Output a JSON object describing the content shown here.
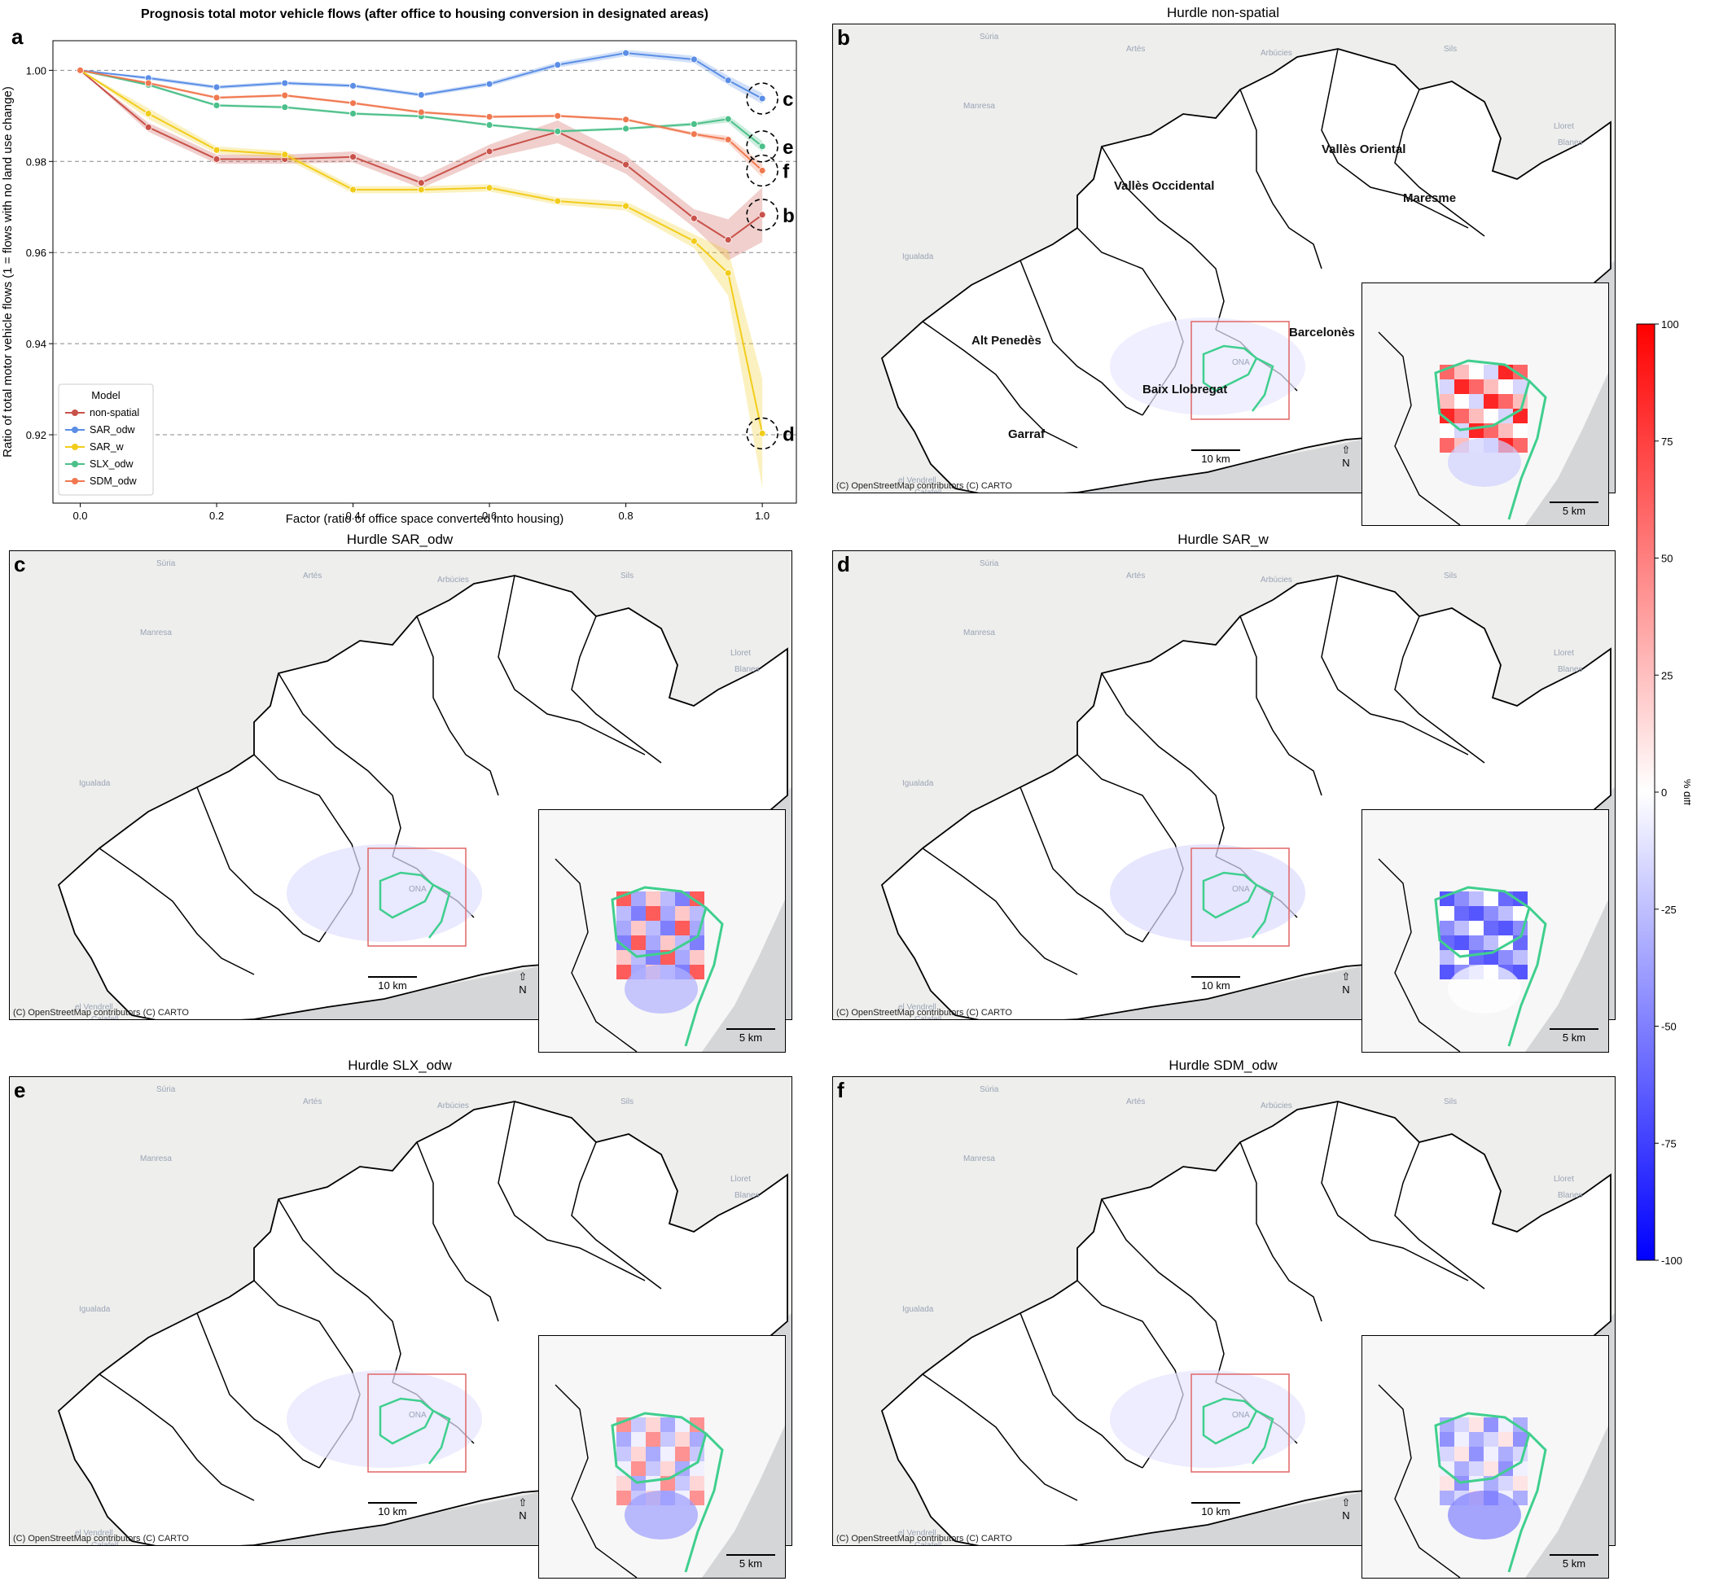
{
  "panels": {
    "a": {
      "letter": "a",
      "title": "Prognosis total motor vehicle flows (after office to housing conversion in designated areas)"
    },
    "b": {
      "letter": "b",
      "title": "Hurdle non-spatial"
    },
    "c": {
      "letter": "c",
      "title": "Hurdle SAR_odw"
    },
    "d": {
      "letter": "d",
      "title": "Hurdle SAR_w"
    },
    "e": {
      "letter": "e",
      "title": "Hurdle SLX_odw"
    },
    "f": {
      "letter": "f",
      "title": "Hurdle SDM_odw"
    }
  },
  "map_common": {
    "credit": "(C) OpenStreetMap contributors (C) CARTO",
    "scale_main": "10 km",
    "scale_inset": "5 km",
    "north": "N",
    "places": [
      "Súria",
      "Artés",
      "Arbúcies",
      "Sils",
      "Manresa",
      "Lloret",
      "Blanes",
      "Igualada",
      "el Vendrell",
      "Calafell",
      "ONA"
    ],
    "region_labels": [
      "Vallès Oriental",
      "Vallès Occidental",
      "Maresme",
      "Alt Penedès",
      "Barcelonès",
      "Baix Llobregat",
      "Garraf"
    ],
    "colors": {
      "boundary": "#000000",
      "highlight": "#3fcf8e",
      "inset_box": "#e06666",
      "sea": "#d4d6d8",
      "land": "#eeeeec"
    }
  },
  "colorbar": {
    "label": "% diff",
    "ticks": [
      100,
      75,
      50,
      25,
      0,
      -25,
      -50,
      -75,
      -100
    ],
    "range": [
      -100,
      100
    ],
    "colormap": [
      "#0000ff",
      "#ffffff",
      "#ff0000"
    ]
  },
  "chart_data": {
    "type": "line",
    "title": "Prognosis total motor vehicle flows (after office to housing conversion in designated areas)",
    "xlabel": "Factor (ratio of office space converted into housing)",
    "ylabel": "Ratio of total motor vehicle flows (1 = flows with no land use change)",
    "xlim": [
      -0.04,
      1.05
    ],
    "ylim": [
      0.905,
      1.0065
    ],
    "xticks": [
      0.0,
      0.2,
      0.4,
      0.6,
      0.8,
      1.0
    ],
    "yticks": [
      0.92,
      0.94,
      0.96,
      0.98,
      1.0
    ],
    "ytick_labels": [
      "0.92",
      "0.94",
      "0.96",
      "0.98",
      "1.00"
    ],
    "xtick_labels": [
      "0.0",
      "0.2",
      "0.4",
      "0.6",
      "0.8",
      "1.0"
    ],
    "grid": "horizontal dashed",
    "legend": {
      "title": "Model",
      "position": "lower-left"
    },
    "x": [
      0.0,
      0.1,
      0.2,
      0.3,
      0.4,
      0.5,
      0.6,
      0.7,
      0.8,
      0.9,
      0.95,
      1.0
    ],
    "series": [
      {
        "name": "non-spatial",
        "color": "#c9524a",
        "values": [
          1.0,
          0.9875,
          0.9805,
          0.9805,
          0.981,
          0.9753,
          0.9822,
          0.9865,
          0.9793,
          0.9675,
          0.9628,
          0.9683
        ],
        "band": [
          0.0,
          0.001,
          0.001,
          0.001,
          0.0012,
          0.0012,
          0.0015,
          0.0025,
          0.002,
          0.002,
          0.0045,
          0.006
        ]
      },
      {
        "name": "SAR_odw",
        "color": "#5b8ee6",
        "values": [
          1.0,
          0.9983,
          0.9963,
          0.9972,
          0.9966,
          0.9946,
          0.997,
          1.0012,
          1.0038,
          1.0024,
          0.9978,
          0.9938
        ],
        "band": [
          0.0,
          0.0004,
          0.0004,
          0.0004,
          0.0004,
          0.0004,
          0.0005,
          0.0006,
          0.0007,
          0.0008,
          0.001,
          0.0012
        ]
      },
      {
        "name": "SAR_w",
        "color": "#f2cc1b",
        "values": [
          1.0,
          0.9905,
          0.9825,
          0.9815,
          0.9738,
          0.9738,
          0.9742,
          0.9713,
          0.9702,
          0.9625,
          0.9555,
          0.9203
        ],
        "band": [
          0.0,
          0.0012,
          0.0008,
          0.0008,
          0.0008,
          0.0008,
          0.0008,
          0.0008,
          0.001,
          0.0015,
          0.005,
          0.012
        ]
      },
      {
        "name": "SLX_odw",
        "color": "#4cc08a",
        "values": [
          1.0,
          0.9968,
          0.9923,
          0.9919,
          0.9905,
          0.9899,
          0.988,
          0.9866,
          0.9872,
          0.9882,
          0.9893,
          0.9833
        ],
        "band": [
          0.0,
          0.0003,
          0.0003,
          0.0003,
          0.0003,
          0.0003,
          0.0003,
          0.0003,
          0.0003,
          0.0004,
          0.0008,
          0.0012
        ]
      },
      {
        "name": "SDM_odw",
        "color": "#f07850",
        "values": [
          1.0,
          0.9972,
          0.994,
          0.9945,
          0.9928,
          0.9908,
          0.9898,
          0.99,
          0.9892,
          0.986,
          0.9848,
          0.978
        ],
        "band": [
          0.0,
          0.0003,
          0.0003,
          0.0003,
          0.0003,
          0.0003,
          0.0003,
          0.0003,
          0.0003,
          0.0004,
          0.0008,
          0.0015
        ]
      }
    ],
    "annotations": [
      {
        "label": "c",
        "x": 1.0,
        "y": 0.9938
      },
      {
        "label": "e",
        "x": 1.0,
        "y": 0.9833
      },
      {
        "label": "f",
        "x": 1.0,
        "y": 0.978
      },
      {
        "label": "b",
        "x": 1.0,
        "y": 0.9683
      },
      {
        "label": "d",
        "x": 1.0,
        "y": 0.9203
      }
    ]
  }
}
